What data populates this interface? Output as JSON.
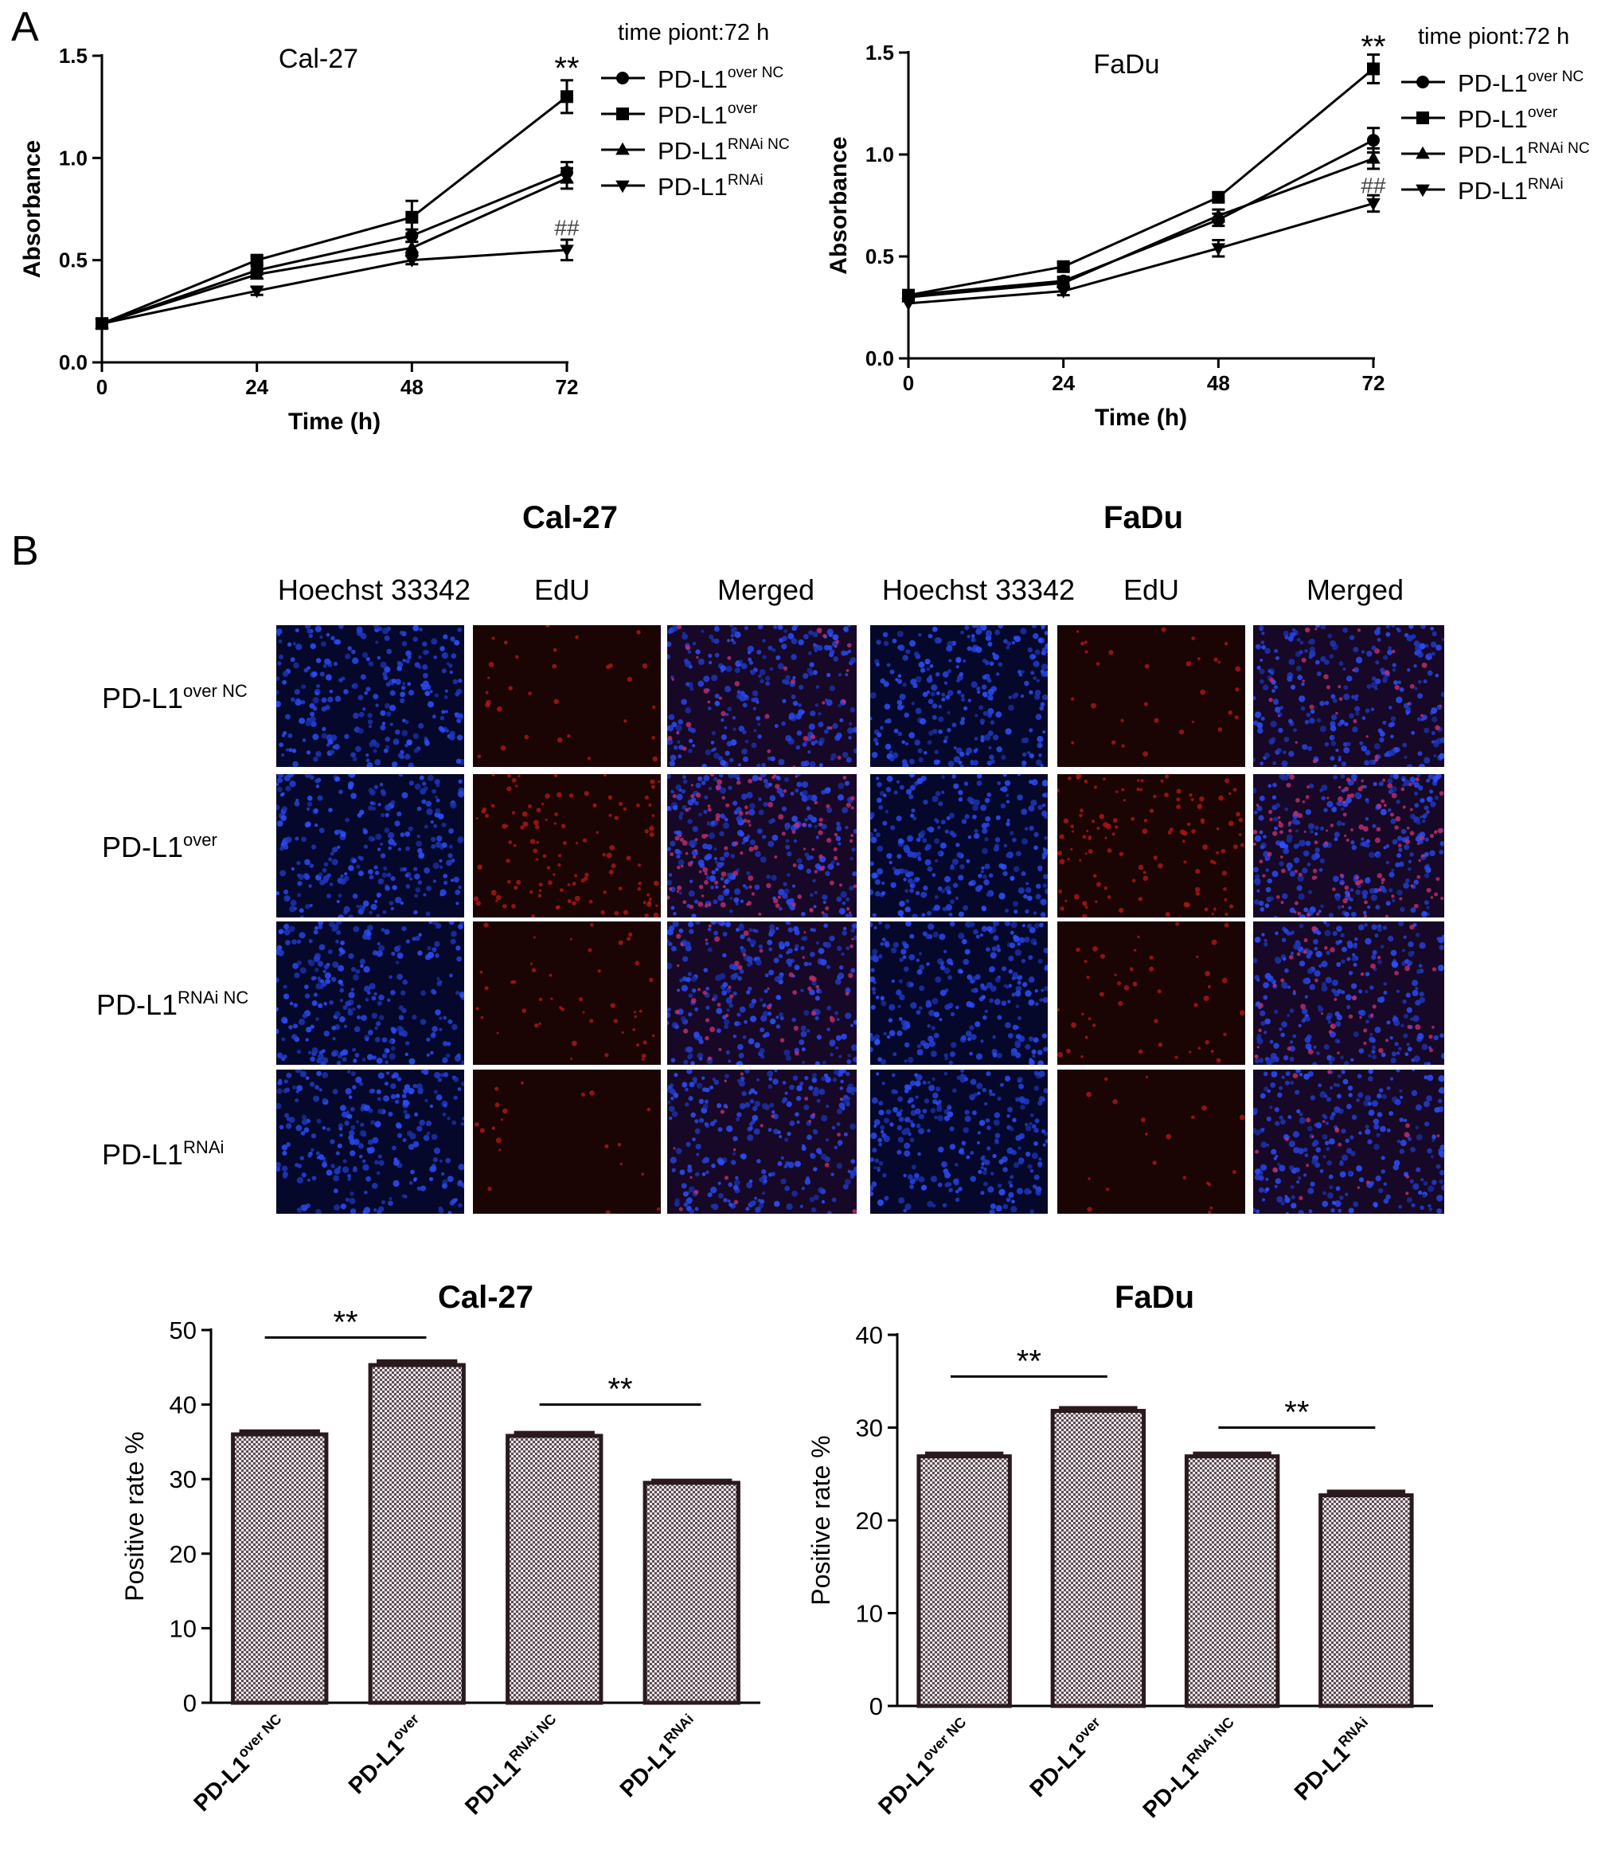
{
  "panels": {
    "a_label": "A",
    "b_label": "B"
  },
  "growth_sub": {
    "over": "over",
    "over_nc": "over NC",
    "rnai": "RNAi",
    "rnai_nc": "RNAi NC"
  },
  "growth": {
    "legend_title": "time piont:72 h",
    "legend_prefix": "PD-L1"
  },
  "micrograph": {
    "columns": [
      "Hoechst 33342",
      "EdU",
      "Merged"
    ],
    "rows": [
      {
        "prefix": "PD-L1",
        "sup": "over NC"
      },
      {
        "prefix": "PD-L1",
        "sup": "over"
      },
      {
        "prefix": "PD-L1",
        "sup": "RNAi NC"
      },
      {
        "prefix": "PD-L1",
        "sup": "RNAi"
      }
    ],
    "groups": [
      "Cal-27",
      "FaDu"
    ],
    "colors": {
      "hoechst": "#1a2fd0",
      "edu": "#c41818",
      "background": "#060414"
    }
  },
  "chart_data": [
    {
      "type": "line",
      "title": "Cal-27",
      "xlabel": "Time (h)",
      "ylabel": "Absorbance",
      "x": [
        0,
        24,
        48,
        72
      ],
      "xticks": [
        "0",
        "24",
        "48",
        "72"
      ],
      "yticks": [
        "0.0",
        "0.5",
        "1.0",
        "1.5"
      ],
      "xlim": [
        0,
        72
      ],
      "ylim": [
        0,
        1.5
      ],
      "grid": false,
      "legend_position": "right",
      "series": [
        {
          "name": "PD-L1 over NC",
          "sup": "over NC",
          "marker": "circle",
          "values": [
            0.19,
            0.45,
            0.62,
            0.93
          ],
          "errors": [
            0.01,
            0.02,
            0.03,
            0.05
          ]
        },
        {
          "name": "PD-L1 over",
          "sup": "over",
          "marker": "square",
          "values": [
            0.19,
            0.5,
            0.71,
            1.3
          ],
          "errors": [
            0.01,
            0.02,
            0.08,
            0.08
          ]
        },
        {
          "name": "PD-L1 RNAi NC",
          "sup": "RNAi NC",
          "marker": "triangle-up",
          "values": [
            0.19,
            0.43,
            0.56,
            0.9
          ],
          "errors": [
            0.01,
            0.02,
            0.03,
            0.05
          ]
        },
        {
          "name": "PD-L1 RNAi",
          "sup": "RNAi",
          "marker": "triangle-down",
          "values": [
            0.19,
            0.35,
            0.5,
            0.55
          ],
          "errors": [
            0.01,
            0.02,
            0.02,
            0.05
          ]
        }
      ],
      "annotations": [
        {
          "text": "**",
          "x": 72,
          "y": 1.48
        },
        {
          "text": "##",
          "x": 72,
          "y": 0.66
        }
      ]
    },
    {
      "type": "line",
      "title": "FaDu",
      "xlabel": "Time (h)",
      "ylabel": "Absorbance",
      "x": [
        0,
        24,
        48,
        72
      ],
      "xticks": [
        "0",
        "24",
        "48",
        "72"
      ],
      "yticks": [
        "0.0",
        "0.5",
        "1.0",
        "1.5"
      ],
      "xlim": [
        0,
        72
      ],
      "ylim": [
        0,
        1.5
      ],
      "grid": false,
      "legend_position": "right",
      "series": [
        {
          "name": "PD-L1 over NC",
          "sup": "over NC",
          "marker": "circle",
          "values": [
            0.31,
            0.38,
            0.68,
            1.07
          ],
          "errors": [
            0.01,
            0.02,
            0.03,
            0.06
          ]
        },
        {
          "name": "PD-L1 over",
          "sup": "over",
          "marker": "square",
          "values": [
            0.31,
            0.45,
            0.79,
            1.42
          ],
          "errors": [
            0.01,
            0.02,
            0.02,
            0.07
          ]
        },
        {
          "name": "PD-L1 RNAi NC",
          "sup": "RNAi NC",
          "marker": "triangle-up",
          "values": [
            0.3,
            0.37,
            0.7,
            0.98
          ],
          "errors": [
            0.01,
            0.02,
            0.03,
            0.05
          ]
        },
        {
          "name": "PD-L1 RNAi",
          "sup": "RNAi",
          "marker": "triangle-down",
          "values": [
            0.27,
            0.33,
            0.54,
            0.76
          ],
          "errors": [
            0.01,
            0.02,
            0.04,
            0.04
          ]
        }
      ],
      "annotations": [
        {
          "text": "**",
          "x": 72,
          "y": 1.57
        },
        {
          "text": "##",
          "x": 72,
          "y": 0.85
        }
      ]
    },
    {
      "type": "bar",
      "title": "Cal-27",
      "ylabel": "Positive rate %",
      "categories": [
        {
          "prefix": "PD-L1",
          "sup": "over NC"
        },
        {
          "prefix": "PD-L1",
          "sup": "over"
        },
        {
          "prefix": "PD-L1",
          "sup": "RNAi NC"
        },
        {
          "prefix": "PD-L1",
          "sup": "RNAi"
        }
      ],
      "values": [
        36.0,
        45.3,
        35.8,
        29.5
      ],
      "errors": [
        0.4,
        0.5,
        0.4,
        0.3
      ],
      "yticks": [
        "0",
        "10",
        "20",
        "30",
        "40",
        "50"
      ],
      "ylim": [
        0,
        50
      ],
      "grid": false,
      "significance": [
        {
          "text": "**",
          "from": 0,
          "to": 1,
          "y": 49.0
        },
        {
          "text": "**",
          "from": 2,
          "to": 3,
          "y": 40.0
        }
      ]
    },
    {
      "type": "bar",
      "title": "FaDu",
      "ylabel": "Positive rate %",
      "categories": [
        {
          "prefix": "PD-L1",
          "sup": "over NC"
        },
        {
          "prefix": "PD-L1",
          "sup": "over"
        },
        {
          "prefix": "PD-L1",
          "sup": "RNAi NC"
        },
        {
          "prefix": "PD-L1",
          "sup": "RNAi"
        }
      ],
      "values": [
        26.9,
        31.8,
        26.9,
        22.7
      ],
      "errors": [
        0.3,
        0.3,
        0.3,
        0.4
      ],
      "yticks": [
        "0",
        "10",
        "20",
        "30",
        "40"
      ],
      "ylim": [
        0,
        40
      ],
      "grid": false,
      "significance": [
        {
          "text": "**",
          "from": 0,
          "to": 1,
          "y": 35.5
        },
        {
          "text": "**",
          "from": 2,
          "to": 3,
          "y": 30.0
        }
      ]
    }
  ]
}
